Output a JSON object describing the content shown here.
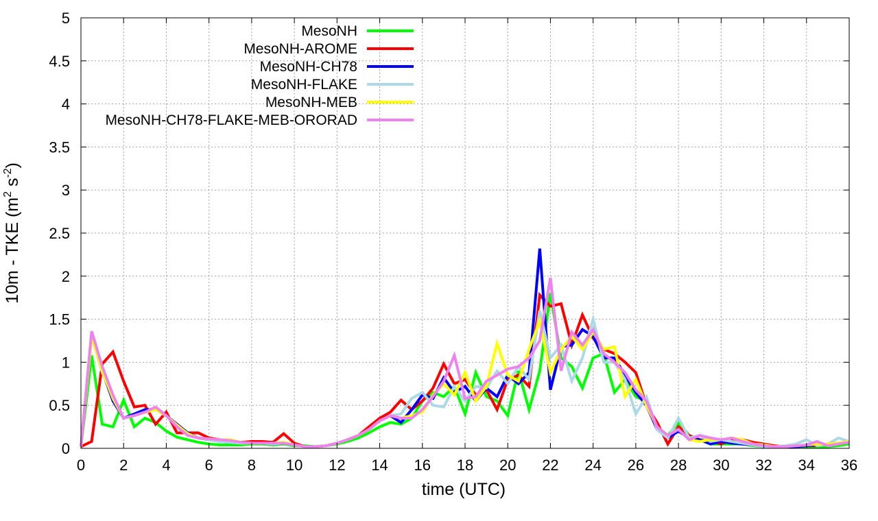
{
  "chart_data": {
    "type": "line",
    "xlabel": "time (UTC)",
    "ylabel": "10m - TKE (m² s⁻²)",
    "ylabel_parts": {
      "prefix": "10m - TKE (m",
      "sup1": "2",
      "mid": " s",
      "sup2": "-2",
      "suffix": ")"
    },
    "xlim": [
      0,
      36
    ],
    "ylim": [
      0,
      5
    ],
    "xticks": [
      0,
      2,
      4,
      6,
      8,
      10,
      12,
      14,
      16,
      18,
      20,
      22,
      24,
      26,
      28,
      30,
      32,
      34,
      36
    ],
    "yticks": [
      0,
      0.5,
      1,
      1.5,
      2,
      2.5,
      3,
      3.5,
      4,
      4.5,
      5
    ],
    "ytick_labels": [
      "0",
      "0.5",
      "1",
      "1.5",
      "2",
      "2.5",
      "3",
      "3.5",
      "4",
      "4.5",
      "5"
    ],
    "grid": true,
    "legend_position": "top-left",
    "series": [
      {
        "name": "MesoNH",
        "color": "#00ff00",
        "x": [
          0,
          0.5,
          1,
          1.5,
          2,
          2.5,
          3,
          3.5,
          4,
          4.5,
          5,
          5.5,
          6,
          6.5,
          7,
          7.5,
          8,
          8.5,
          9,
          9.5,
          10,
          10.5,
          11,
          11.5,
          12,
          12.5,
          13,
          13.5,
          14,
          14.5,
          15,
          15.5,
          16,
          16.5,
          17,
          17.5,
          18,
          18.5,
          19,
          19.5,
          20,
          20.5,
          21,
          21.5,
          22,
          22.5,
          23,
          23.5,
          24,
          24.5,
          25,
          25.5,
          26,
          26.5,
          27,
          27.5,
          28,
          28.5,
          29,
          29.5,
          30,
          30.5,
          31,
          31.5,
          32,
          32.5,
          33,
          33.5,
          34,
          34.5,
          35,
          35.5,
          36
        ],
        "y": [
          0.02,
          1.08,
          0.28,
          0.25,
          0.56,
          0.25,
          0.35,
          0.3,
          0.2,
          0.13,
          0.1,
          0.07,
          0.05,
          0.04,
          0.04,
          0.04,
          0.05,
          0.05,
          0.04,
          0.05,
          0.03,
          0.03,
          0.02,
          0.03,
          0.05,
          0.08,
          0.12,
          0.18,
          0.25,
          0.3,
          0.28,
          0.35,
          0.55,
          0.65,
          0.6,
          0.72,
          0.4,
          0.88,
          0.6,
          0.55,
          0.38,
          0.9,
          0.45,
          0.9,
          1.8,
          1.05,
          0.95,
          0.7,
          1.05,
          1.1,
          0.65,
          0.8,
          0.6,
          0.55,
          0.25,
          0.15,
          0.3,
          0.15,
          0.1,
          0.05,
          0.05,
          0.05,
          0.05,
          0.03,
          0.02,
          0.02,
          0.02,
          0.02,
          0.02,
          0.02,
          0.02,
          0.03,
          0.05
        ]
      },
      {
        "name": "MesoNH-AROME",
        "color": "#ff0000",
        "x": [
          0,
          0.5,
          1,
          1.5,
          2,
          2.5,
          3,
          3.5,
          4,
          4.5,
          5,
          5.5,
          6,
          6.5,
          7,
          7.5,
          8,
          8.5,
          9,
          9.5,
          10,
          10.5,
          11,
          11.5,
          12,
          12.5,
          13,
          13.5,
          14,
          14.5,
          15,
          15.5,
          16,
          16.5,
          17,
          17.5,
          18,
          18.5,
          19,
          19.5,
          20,
          20.5,
          21,
          21.5,
          22,
          22.5,
          23,
          23.5,
          24,
          24.5,
          25,
          25.5,
          26,
          26.5,
          27,
          27.5,
          28,
          28.5,
          29,
          29.5,
          30,
          30.5,
          31,
          31.5,
          32,
          32.5,
          33,
          33.5,
          34,
          34.5,
          35,
          35.5,
          36
        ],
        "y": [
          0.02,
          0.08,
          0.98,
          1.12,
          0.78,
          0.48,
          0.5,
          0.28,
          0.42,
          0.18,
          0.18,
          0.18,
          0.12,
          0.1,
          0.08,
          0.07,
          0.08,
          0.08,
          0.07,
          0.17,
          0.06,
          0.02,
          0.02,
          0.03,
          0.06,
          0.1,
          0.15,
          0.25,
          0.35,
          0.42,
          0.56,
          0.45,
          0.55,
          0.7,
          0.98,
          0.75,
          0.8,
          0.62,
          0.68,
          0.45,
          0.8,
          0.85,
          0.72,
          1.78,
          1.65,
          1.68,
          1.2,
          1.55,
          1.28,
          1.15,
          1.1,
          1.0,
          0.88,
          0.5,
          0.3,
          0.05,
          0.25,
          0.15,
          0.1,
          0.08,
          0.05,
          0.1,
          0.1,
          0.07,
          0.05,
          0.03,
          0.02,
          0.02,
          0.03,
          0.03,
          0.05,
          0.05,
          0.08
        ]
      },
      {
        "name": "MesoNH-CH78",
        "color": "#0000ff",
        "x": [
          0,
          0.5,
          1,
          1.5,
          2,
          2.5,
          3,
          3.5,
          4,
          4.5,
          5,
          5.5,
          6,
          6.5,
          7,
          7.5,
          8,
          8.5,
          9,
          9.5,
          10,
          10.5,
          11,
          11.5,
          12,
          12.5,
          13,
          13.5,
          14,
          14.5,
          15,
          15.5,
          16,
          16.5,
          17,
          17.5,
          18,
          18.5,
          19,
          19.5,
          20,
          20.5,
          21,
          21.5,
          22,
          22.5,
          23,
          23.5,
          24,
          24.5,
          25,
          25.5,
          26,
          26.5,
          27,
          27.5,
          28,
          28.5,
          29,
          29.5,
          30,
          30.5,
          31,
          31.5,
          32,
          32.5,
          33,
          33.5,
          34,
          34.5,
          35,
          35.5,
          36
        ],
        "y": [
          0.02,
          1.3,
          0.9,
          0.55,
          0.35,
          0.4,
          0.45,
          0.45,
          0.38,
          0.28,
          0.18,
          0.12,
          0.1,
          0.08,
          0.07,
          0.06,
          0.06,
          0.06,
          0.05,
          0.06,
          0.04,
          0.02,
          0.02,
          0.03,
          0.06,
          0.1,
          0.15,
          0.22,
          0.32,
          0.38,
          0.3,
          0.45,
          0.62,
          0.58,
          0.82,
          0.65,
          0.72,
          0.55,
          0.7,
          0.6,
          0.85,
          0.75,
          0.88,
          2.32,
          0.68,
          1.18,
          1.2,
          1.38,
          1.3,
          1.05,
          1.05,
          0.85,
          0.65,
          0.5,
          0.22,
          0.12,
          0.2,
          0.12,
          0.1,
          0.05,
          0.08,
          0.06,
          0.05,
          0.04,
          0.02,
          0.02,
          0.02,
          0.02,
          0.03,
          0.04,
          0.05,
          0.06,
          0.08
        ]
      },
      {
        "name": "MesoNH-FLAKE",
        "color": "#add8e6",
        "x": [
          0,
          0.5,
          1,
          1.5,
          2,
          2.5,
          3,
          3.5,
          4,
          4.5,
          5,
          5.5,
          6,
          6.5,
          7,
          7.5,
          8,
          8.5,
          9,
          9.5,
          10,
          10.5,
          11,
          11.5,
          12,
          12.5,
          13,
          13.5,
          14,
          14.5,
          15,
          15.5,
          16,
          16.5,
          17,
          17.5,
          18,
          18.5,
          19,
          19.5,
          20,
          20.5,
          21,
          21.5,
          22,
          22.5,
          23,
          23.5,
          24,
          24.5,
          25,
          25.5,
          26,
          26.5,
          27,
          27.5,
          28,
          28.5,
          29,
          29.5,
          30,
          30.5,
          31,
          31.5,
          32,
          32.5,
          33,
          33.5,
          34,
          34.5,
          35,
          35.5,
          36
        ],
        "y": [
          0.02,
          1.3,
          0.88,
          0.6,
          0.35,
          0.38,
          0.42,
          0.45,
          0.38,
          0.25,
          0.17,
          0.12,
          0.1,
          0.08,
          0.07,
          0.06,
          0.06,
          0.06,
          0.05,
          0.06,
          0.04,
          0.02,
          0.02,
          0.03,
          0.06,
          0.1,
          0.15,
          0.22,
          0.32,
          0.38,
          0.4,
          0.58,
          0.65,
          0.5,
          0.48,
          0.72,
          0.55,
          0.72,
          0.7,
          0.9,
          0.75,
          0.95,
          0.8,
          1.6,
          1.05,
          1.2,
          0.78,
          1.05,
          1.5,
          1.0,
          1.0,
          0.8,
          0.4,
          0.6,
          0.22,
          0.12,
          0.35,
          0.12,
          0.15,
          0.08,
          0.1,
          0.08,
          0.06,
          0.04,
          0.02,
          0.02,
          0.03,
          0.05,
          0.1,
          0.03,
          0.05,
          0.12,
          0.08
        ]
      },
      {
        "name": "MesoNH-MEB",
        "color": "#ffff00",
        "x": [
          0,
          0.5,
          1,
          1.5,
          2,
          2.5,
          3,
          3.5,
          4,
          4.5,
          5,
          5.5,
          6,
          6.5,
          7,
          7.5,
          8,
          8.5,
          9,
          9.5,
          10,
          10.5,
          11,
          11.5,
          12,
          12.5,
          13,
          13.5,
          14,
          14.5,
          15,
          15.5,
          16,
          16.5,
          17,
          17.5,
          18,
          18.5,
          19,
          19.5,
          20,
          20.5,
          21,
          21.5,
          22,
          22.5,
          23,
          23.5,
          24,
          24.5,
          25,
          25.5,
          26,
          26.5,
          27,
          27.5,
          28,
          28.5,
          29,
          29.5,
          30,
          30.5,
          31,
          31.5,
          32,
          32.5,
          33,
          33.5,
          34,
          34.5,
          35,
          35.5,
          36
        ],
        "y": [
          0.02,
          1.3,
          0.9,
          0.58,
          0.35,
          0.38,
          0.42,
          0.45,
          0.38,
          0.27,
          0.17,
          0.12,
          0.11,
          0.1,
          0.1,
          0.07,
          0.06,
          0.06,
          0.06,
          0.07,
          0.04,
          0.02,
          0.02,
          0.03,
          0.06,
          0.1,
          0.15,
          0.22,
          0.32,
          0.38,
          0.35,
          0.38,
          0.42,
          0.62,
          0.75,
          0.62,
          0.88,
          0.55,
          0.72,
          1.22,
          0.85,
          0.78,
          1.15,
          1.48,
          0.88,
          1.15,
          1.3,
          1.15,
          1.35,
          1.15,
          1.18,
          0.6,
          0.8,
          0.5,
          0.25,
          0.15,
          0.22,
          0.1,
          0.08,
          0.1,
          0.1,
          0.12,
          0.1,
          0.05,
          0.04,
          0.02,
          0.02,
          0.03,
          0.04,
          0.05,
          0.05,
          0.06,
          0.08
        ]
      },
      {
        "name": "MesoNH-CH78-FLAKE-MEB-ORORAD",
        "color": "#ee82ee",
        "x": [
          0,
          0.5,
          1,
          1.5,
          2,
          2.5,
          3,
          3.5,
          4,
          4.5,
          5,
          5.5,
          6,
          6.5,
          7,
          7.5,
          8,
          8.5,
          9,
          9.5,
          10,
          10.5,
          11,
          11.5,
          12,
          12.5,
          13,
          13.5,
          14,
          14.5,
          15,
          15.5,
          16,
          16.5,
          17,
          17.5,
          18,
          18.5,
          19,
          19.5,
          20,
          20.5,
          21,
          21.5,
          22,
          22.5,
          23,
          23.5,
          24,
          24.5,
          25,
          25.5,
          26,
          26.5,
          27,
          27.5,
          28,
          28.5,
          29,
          29.5,
          30,
          30.5,
          31,
          31.5,
          32,
          32.5,
          33,
          33.5,
          34,
          34.5,
          35,
          35.5,
          36
        ],
        "y": [
          0.02,
          1.36,
          0.95,
          0.62,
          0.35,
          0.38,
          0.42,
          0.48,
          0.38,
          0.25,
          0.15,
          0.12,
          0.11,
          0.1,
          0.09,
          0.07,
          0.06,
          0.06,
          0.06,
          0.06,
          0.04,
          0.02,
          0.02,
          0.03,
          0.06,
          0.1,
          0.15,
          0.22,
          0.32,
          0.38,
          0.35,
          0.35,
          0.45,
          0.6,
          0.78,
          1.08,
          0.58,
          0.6,
          0.78,
          0.85,
          0.92,
          0.95,
          1.05,
          1.25,
          1.98,
          0.9,
          1.35,
          1.2,
          1.38,
          1.1,
          1.0,
          0.88,
          0.68,
          0.55,
          0.25,
          0.15,
          0.22,
          0.1,
          0.15,
          0.12,
          0.1,
          0.12,
          0.08,
          0.05,
          0.03,
          0.02,
          0.02,
          0.03,
          0.04,
          0.08,
          0.03,
          0.05,
          0.07
        ]
      }
    ]
  }
}
